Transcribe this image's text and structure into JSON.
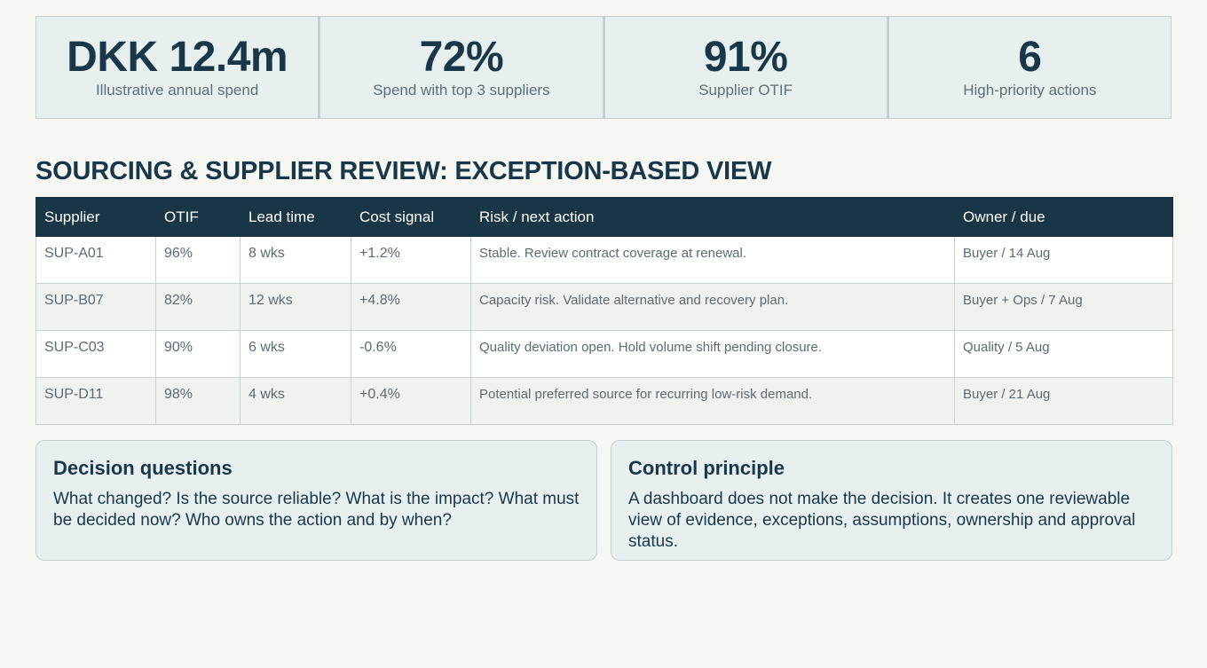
{
  "kpis": [
    {
      "value": "DKK 12.4m",
      "label": "Illustrative annual spend"
    },
    {
      "value": "72%",
      "label": "Spend with top 3 suppliers"
    },
    {
      "value": "91%",
      "label": "Supplier OTIF"
    },
    {
      "value": "6",
      "label": "High-priority actions"
    }
  ],
  "section": {
    "title": "SOURCING & SUPPLIER REVIEW: EXCEPTION-BASED VIEW"
  },
  "table": {
    "headers": [
      "Supplier",
      "OTIF",
      "Lead time",
      "Cost signal",
      "Risk / next action",
      "Owner / due"
    ],
    "rows": [
      [
        "SUP-A01",
        "96%",
        "8 wks",
        "+1.2%",
        "Stable. Review contract coverage at renewal.",
        "Buyer / 14 Aug"
      ],
      [
        "SUP-B07",
        "82%",
        "12 wks",
        "+4.8%",
        "Capacity risk. Validate alternative and recovery plan.",
        "Buyer + Ops / 7 Aug"
      ],
      [
        "SUP-C03",
        "90%",
        "6 wks",
        "-0.6%",
        "Quality deviation open. Hold volume shift pending closure.",
        "Quality / 5 Aug"
      ],
      [
        "SUP-D11",
        "98%",
        "4 wks",
        "+0.4%",
        "Potential preferred source for recurring low-risk demand.",
        "Buyer / 21 Aug"
      ]
    ]
  },
  "cards": [
    {
      "title": "Decision questions",
      "body": "What changed? Is the source reliable? What is the impact? What must be decided now? Who owns the action and by when?"
    },
    {
      "title": "Control principle",
      "body": "A dashboard does not make the decision. It creates one reviewable view of evidence, exceptions, assumptions, ownership and approval status."
    }
  ]
}
